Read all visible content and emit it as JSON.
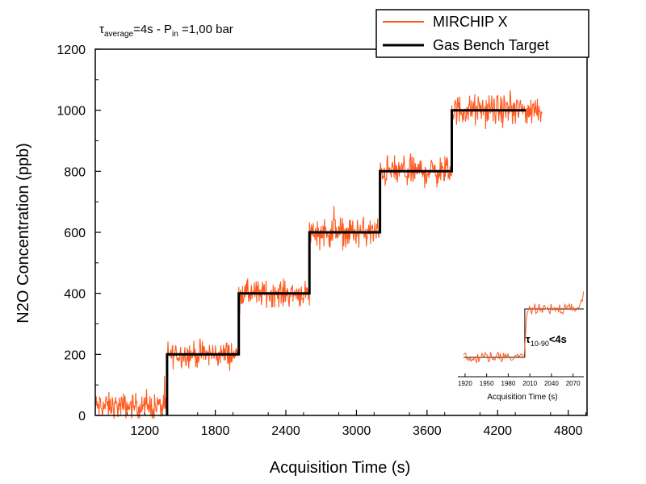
{
  "chart_data": {
    "type": "line",
    "title": "",
    "annotation": {
      "tau_symbol": "τ",
      "tau_sub": "average",
      "tau_value": "=4s - P",
      "p_sub": "in",
      "p_value": " =1,00 bar"
    },
    "xlabel": "Acquisition Time (s)",
    "ylabel": "N2O Concentration (ppb)",
    "xlim": [
      780,
      4960
    ],
    "ylim": [
      0,
      1200
    ],
    "x_ticks": [
      1200,
      1800,
      2400,
      3000,
      3600,
      4200,
      4800
    ],
    "y_ticks": [
      0,
      200,
      400,
      600,
      800,
      1000,
      1200
    ],
    "legend_position": "top-right",
    "series": [
      {
        "name": "MIRCHIP X",
        "color": "#ff5a1f",
        "style": "noisy-steps",
        "steps": [
          {
            "x0": 780,
            "x1": 1390,
            "level": 30,
            "noise": 30
          },
          {
            "x0": 1390,
            "x1": 2000,
            "level": 200,
            "noise": 30
          },
          {
            "x0": 2000,
            "x1": 2600,
            "level": 400,
            "noise": 30
          },
          {
            "x0": 2600,
            "x1": 3200,
            "level": 600,
            "noise": 35
          },
          {
            "x0": 3200,
            "x1": 3810,
            "level": 800,
            "noise": 35
          },
          {
            "x0": 3810,
            "x1": 4580,
            "level": 1000,
            "noise": 35
          }
        ]
      },
      {
        "name": "Gas Bench Target",
        "color": "#000000",
        "points": [
          [
            1390,
            0
          ],
          [
            1390,
            200
          ],
          [
            2000,
            200
          ],
          [
            2000,
            400
          ],
          [
            2600,
            400
          ],
          [
            2600,
            600
          ],
          [
            3200,
            600
          ],
          [
            3200,
            800
          ],
          [
            3810,
            800
          ],
          [
            3810,
            1000
          ],
          [
            4440,
            1000
          ]
        ]
      }
    ],
    "inset": {
      "xlabel": "Acquisition Time (s)",
      "x_ticks": [
        1920,
        1950,
        1980,
        2010,
        2040,
        2070
      ],
      "xlim": [
        1910,
        2085
      ],
      "annotation_symbol": "τ",
      "annotation_sub": "10-90",
      "annotation_value": "<4s",
      "target_step_x": 2003
    }
  }
}
